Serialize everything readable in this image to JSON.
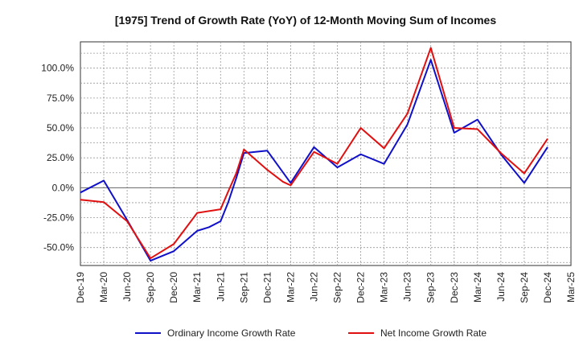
{
  "chart_data": {
    "type": "line",
    "title": "[1975]  Trend of Growth Rate (YoY) of 12-Month Moving Sum of Incomes",
    "xlabel": "",
    "ylabel": "",
    "categories": [
      "Dec-19",
      "Mar-20",
      "Jun-20",
      "Sep-20",
      "Dec-20",
      "Mar-21",
      "Jun-21",
      "Sep-21",
      "Dec-21",
      "Mar-22",
      "Jun-22",
      "Sep-22",
      "Dec-22",
      "Mar-23",
      "Jun-23",
      "Sep-23",
      "Dec-23",
      "Mar-24",
      "Jun-24",
      "Sep-24",
      "Dec-24",
      "Mar-25"
    ],
    "y_ticks": [
      "-50.0%",
      "-25.0%",
      "0.0%",
      "25.0%",
      "50.0%",
      "75.0%",
      "100.0%"
    ],
    "y_tick_values": [
      -50,
      -25,
      0,
      25,
      50,
      75,
      100
    ],
    "ylim": [
      -65,
      122
    ],
    "grid": true,
    "legend_position": "bottom",
    "series": [
      {
        "name": "Ordinary Income Growth Rate",
        "color": "#1010c8",
        "x": [
          0,
          1,
          2,
          3,
          4,
          5,
          5.5,
          6,
          6.33,
          6.67,
          7,
          8,
          9,
          10,
          11,
          12,
          13,
          14,
          15,
          16,
          17,
          18,
          19,
          20
        ],
        "values": [
          -4,
          6,
          -27,
          -61,
          -53,
          -36,
          -33,
          -28,
          -12,
          8,
          29,
          31,
          4,
          34,
          17,
          28,
          20,
          53,
          107,
          46,
          57,
          28,
          4,
          34
        ]
      },
      {
        "name": "Net Income Growth Rate",
        "color": "#e01010",
        "x": [
          0,
          1,
          2,
          3,
          4,
          5,
          6,
          6.33,
          6.67,
          7,
          8,
          8.67,
          9,
          10,
          11,
          12,
          13,
          14,
          15,
          16,
          17,
          18,
          19,
          20
        ],
        "values": [
          -10,
          -12,
          -28,
          -59,
          -47,
          -21,
          -18,
          -3,
          12,
          32,
          15,
          5,
          2,
          30,
          20,
          50,
          33,
          62,
          117,
          50,
          49,
          29,
          12,
          41
        ]
      }
    ]
  }
}
